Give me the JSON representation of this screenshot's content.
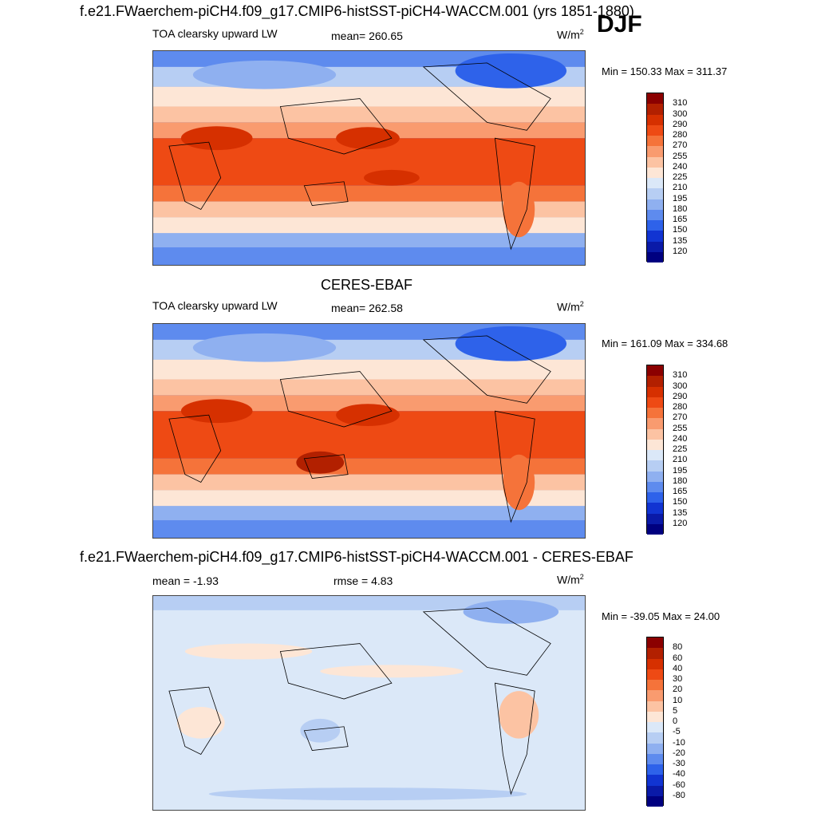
{
  "title_top": "f.e21.FWaerchem-piCH4.f09_g17.CMIP6-histSST-piCH4-WACCM.001 (yrs 1851-1880)",
  "season": "DJF",
  "panels": [
    {
      "variable": "TOA clearsky upward LW",
      "stat_label": "mean=",
      "stat_value": "260.65",
      "units_base": "W/m",
      "units_exp": "2",
      "minmax": "Min = 150.33 Max = 311.37",
      "colorbar_labels": [
        "310",
        "300",
        "290",
        "280",
        "270",
        "255",
        "240",
        "225",
        "210",
        "195",
        "180",
        "165",
        "150",
        "135",
        "120"
      ]
    },
    {
      "title": "CERES-EBAF",
      "variable": "TOA clearsky upward LW",
      "stat_label": "mean=",
      "stat_value": "262.58",
      "units_base": "W/m",
      "units_exp": "2",
      "minmax": "Min = 161.09 Max = 334.68",
      "colorbar_labels": [
        "310",
        "300",
        "290",
        "280",
        "270",
        "255",
        "240",
        "225",
        "210",
        "195",
        "180",
        "165",
        "150",
        "135",
        "120"
      ]
    },
    {
      "title": "f.e21.FWaerchem-piCH4.f09_g17.CMIP6-histSST-piCH4-WACCM.001 - CERES-EBAF",
      "stat_label": "mean =",
      "stat_value": "-1.93",
      "stat2_label": "rmse =",
      "stat2_value": "4.83",
      "units_base": "W/m",
      "units_exp": "2",
      "minmax": "Min = -39.05 Max =  24.00",
      "colorbar_labels": [
        "80",
        "60",
        "40",
        "30",
        "20",
        "10",
        "5",
        "0",
        "-5",
        "-10",
        "-20",
        "-30",
        "-40",
        "-60",
        "-80"
      ]
    }
  ],
  "colors": {
    "scale": [
      "#8b0000",
      "#b22000",
      "#d63000",
      "#ee4a14",
      "#f5733a",
      "#f99b6f",
      "#fcc3a3",
      "#fde6d6",
      "#dbe8f8",
      "#b7cef3",
      "#8fb0f0",
      "#5e8bee",
      "#2e62ea",
      "#1134d2",
      "#0a1aa8",
      "#000080"
    ]
  }
}
